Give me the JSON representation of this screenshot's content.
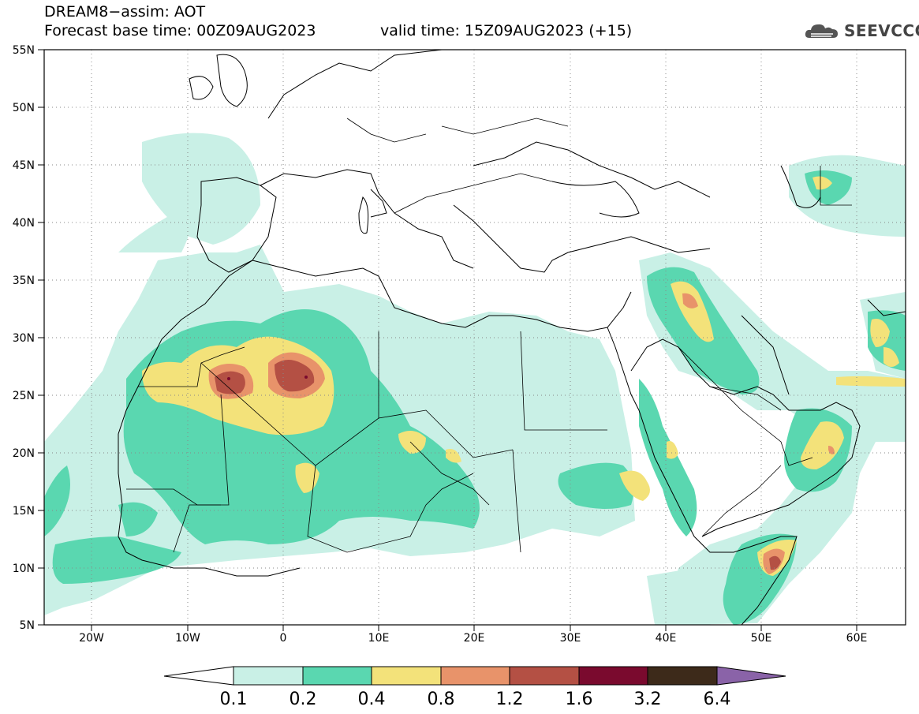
{
  "header": {
    "title_line1": "DREAM8−assim: AOT",
    "title_line2": "Forecast base time: 00Z09AUG2023",
    "valid_time": "valid time: 15Z09AUG2023 (+15)",
    "logo_text": "SEEVCCC"
  },
  "map": {
    "lat_labels": [
      "55N",
      "50N",
      "45N",
      "40N",
      "35N",
      "30N",
      "25N",
      "20N",
      "15N",
      "10N",
      "5N"
    ],
    "lon_labels": [
      "20W",
      "10W",
      "0",
      "10E",
      "20E",
      "30E",
      "40E",
      "50E",
      "60E"
    ],
    "lat_range": [
      5,
      55
    ],
    "lon_range": [
      -25,
      65
    ],
    "grid": "dotted"
  },
  "colorbar": {
    "labels": [
      "0.1",
      "0.2",
      "0.4",
      "0.8",
      "1.2",
      "1.6",
      "3.2",
      "6.4"
    ],
    "colors": [
      "#ffffff",
      "#c9f0e6",
      "#5ad7b0",
      "#f3e27a",
      "#e8936a",
      "#b45044",
      "#7a0a2e",
      "#3d2a1a",
      "#8a63a8"
    ]
  },
  "colors": {
    "l1": "#c9f0e6",
    "l2": "#5ad7b0",
    "l3": "#f3e27a",
    "l4": "#e8936a",
    "l5": "#b45044",
    "l6": "#7a0a2e"
  }
}
